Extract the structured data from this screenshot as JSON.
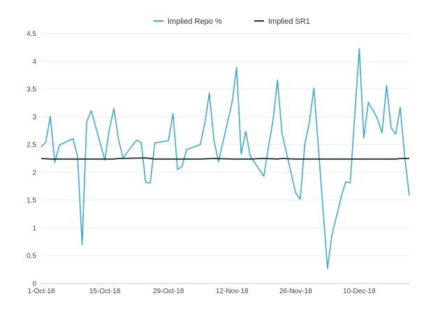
{
  "chart_data": {
    "type": "line",
    "xlabel": "",
    "ylabel": "",
    "ylim": [
      0,
      4.5
    ],
    "yticks": [
      "0",
      "0.5",
      "1",
      "1.5",
      "2",
      "2.5",
      "3",
      "3.5",
      "4",
      "4.5"
    ],
    "xlim": [
      "2018-10-01",
      "2018-12-21"
    ],
    "xticks": [
      {
        "date": "2018-10-01",
        "label": "1-Oct-18"
      },
      {
        "date": "2018-10-15",
        "label": "15-Oct-18"
      },
      {
        "date": "2018-10-29",
        "label": "29-Oct-18"
      },
      {
        "date": "2018-11-12",
        "label": "12-Nov-18"
      },
      {
        "date": "2018-11-26",
        "label": "26-Nov-18"
      },
      {
        "date": "2018-12-10",
        "label": "10-Dec-18"
      }
    ],
    "grid": "horizontal",
    "legend_position": "top",
    "series": [
      {
        "name": "Implied Repo %",
        "color": "#3da9d6",
        "points": [
          [
            "2018-10-01",
            2.46
          ],
          [
            "2018-10-02",
            2.54
          ],
          [
            "2018-10-03",
            3.01
          ],
          [
            "2018-10-04",
            2.18
          ],
          [
            "2018-10-05",
            2.49
          ],
          [
            "2018-10-08",
            2.61
          ],
          [
            "2018-10-09",
            2.29
          ],
          [
            "2018-10-10",
            0.7
          ],
          [
            "2018-10-11",
            2.91
          ],
          [
            "2018-10-12",
            3.11
          ],
          [
            "2018-10-15",
            2.22
          ],
          [
            "2018-10-16",
            2.78
          ],
          [
            "2018-10-17",
            3.15
          ],
          [
            "2018-10-18",
            2.6
          ],
          [
            "2018-10-19",
            2.26
          ],
          [
            "2018-10-22",
            2.58
          ],
          [
            "2018-10-23",
            2.54
          ],
          [
            "2018-10-24",
            1.82
          ],
          [
            "2018-10-25",
            1.81
          ],
          [
            "2018-10-26",
            2.53
          ],
          [
            "2018-10-29",
            2.57
          ],
          [
            "2018-10-30",
            3.06
          ],
          [
            "2018-10-31",
            2.05
          ],
          [
            "2018-11-01",
            2.11
          ],
          [
            "2018-11-02",
            2.41
          ],
          [
            "2018-11-05",
            2.5
          ],
          [
            "2018-11-06",
            2.88
          ],
          [
            "2018-11-07",
            3.43
          ],
          [
            "2018-11-08",
            2.59
          ],
          [
            "2018-11-09",
            2.19
          ],
          [
            "2018-11-12",
            3.26
          ],
          [
            "2018-11-13",
            3.89
          ],
          [
            "2018-11-14",
            2.33
          ],
          [
            "2018-11-15",
            2.74
          ],
          [
            "2018-11-16",
            2.29
          ],
          [
            "2018-11-19",
            1.93
          ],
          [
            "2018-11-20",
            2.46
          ],
          [
            "2018-11-21",
            2.93
          ],
          [
            "2018-11-22",
            3.66
          ],
          [
            "2018-11-23",
            2.7
          ],
          [
            "2018-11-26",
            1.63
          ],
          [
            "2018-11-27",
            1.52
          ],
          [
            "2018-11-28",
            2.51
          ],
          [
            "2018-11-29",
            2.9
          ],
          [
            "2018-11-30",
            3.52
          ],
          [
            "2018-12-03",
            0.27
          ],
          [
            "2018-12-04",
            0.89
          ],
          [
            "2018-12-05",
            1.21
          ],
          [
            "2018-12-06",
            1.55
          ],
          [
            "2018-12-07",
            1.83
          ],
          [
            "2018-12-08",
            1.81
          ],
          [
            "2018-12-10",
            4.23
          ],
          [
            "2018-12-11",
            2.62
          ],
          [
            "2018-12-12",
            3.26
          ],
          [
            "2018-12-13",
            3.12
          ],
          [
            "2018-12-14",
            2.96
          ],
          [
            "2018-12-15",
            2.71
          ],
          [
            "2018-12-16",
            3.57
          ],
          [
            "2018-12-17",
            2.8
          ],
          [
            "2018-12-18",
            2.69
          ],
          [
            "2018-12-19",
            3.17
          ],
          [
            "2018-12-20",
            2.28
          ],
          [
            "2018-12-21",
            1.58
          ]
        ]
      },
      {
        "name": "Implied SR1",
        "color": "#1d2f45",
        "points": [
          [
            "2018-10-01",
            2.25
          ],
          [
            "2018-10-03",
            2.24
          ],
          [
            "2018-10-10",
            2.24
          ],
          [
            "2018-10-17",
            2.24
          ],
          [
            "2018-10-18",
            2.25
          ],
          [
            "2018-10-24",
            2.26
          ],
          [
            "2018-10-26",
            2.24
          ],
          [
            "2018-11-05",
            2.24
          ],
          [
            "2018-11-08",
            2.25
          ],
          [
            "2018-11-12",
            2.24
          ],
          [
            "2018-11-16",
            2.24
          ],
          [
            "2018-11-19",
            2.25
          ],
          [
            "2018-11-22",
            2.24
          ],
          [
            "2018-11-23",
            2.25
          ],
          [
            "2018-11-26",
            2.24
          ],
          [
            "2018-12-10",
            2.24
          ],
          [
            "2018-12-18",
            2.24
          ],
          [
            "2018-12-19",
            2.25
          ],
          [
            "2018-12-21",
            2.25
          ]
        ]
      }
    ]
  }
}
